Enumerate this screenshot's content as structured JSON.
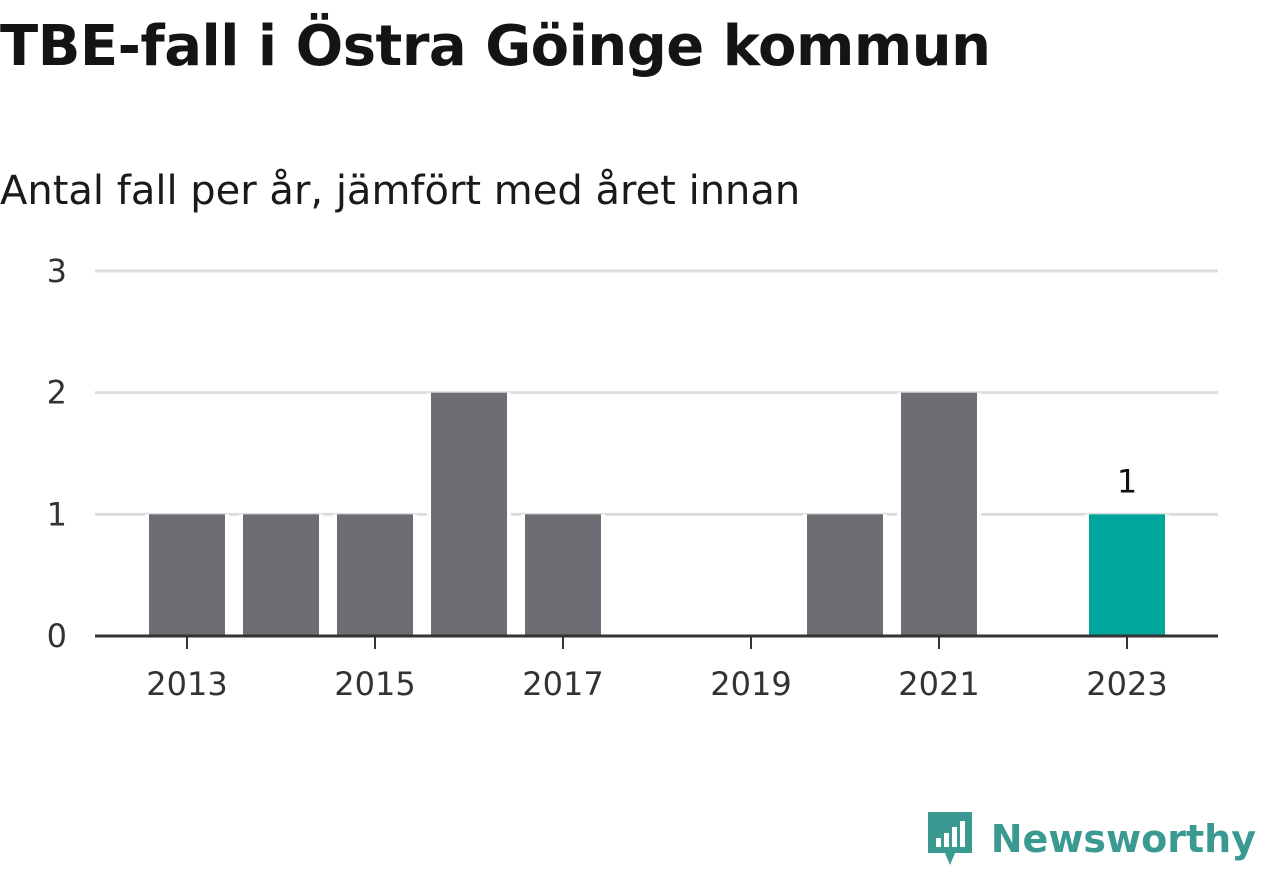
{
  "title": "TBE-fall i Östra Göinge kommun",
  "subtitle": "Antal fall per år, jämfört med året innan",
  "brand": {
    "name": "Newsworthy",
    "icon": "newsworthy-logo-icon",
    "color": "#3a9a92"
  },
  "colors": {
    "bar": "#6e6d73",
    "highlight": "#00a59b",
    "grid": "#dddddd",
    "axis": "#333333"
  },
  "chart_data": {
    "type": "bar",
    "categories": [
      2013,
      2014,
      2015,
      2016,
      2017,
      2018,
      2019,
      2020,
      2021,
      2022,
      2023
    ],
    "values": [
      1,
      1,
      1,
      2,
      1,
      0,
      0,
      1,
      2,
      0,
      1
    ],
    "highlight_index": 10,
    "highlight_label": "1",
    "ylim": [
      0,
      3
    ],
    "y_ticks": [
      0,
      1,
      2,
      3
    ],
    "x_tick_labels": [
      "2013",
      "2015",
      "2017",
      "2019",
      "2021",
      "2023"
    ],
    "grid": true,
    "xlabel": "",
    "ylabel": ""
  }
}
